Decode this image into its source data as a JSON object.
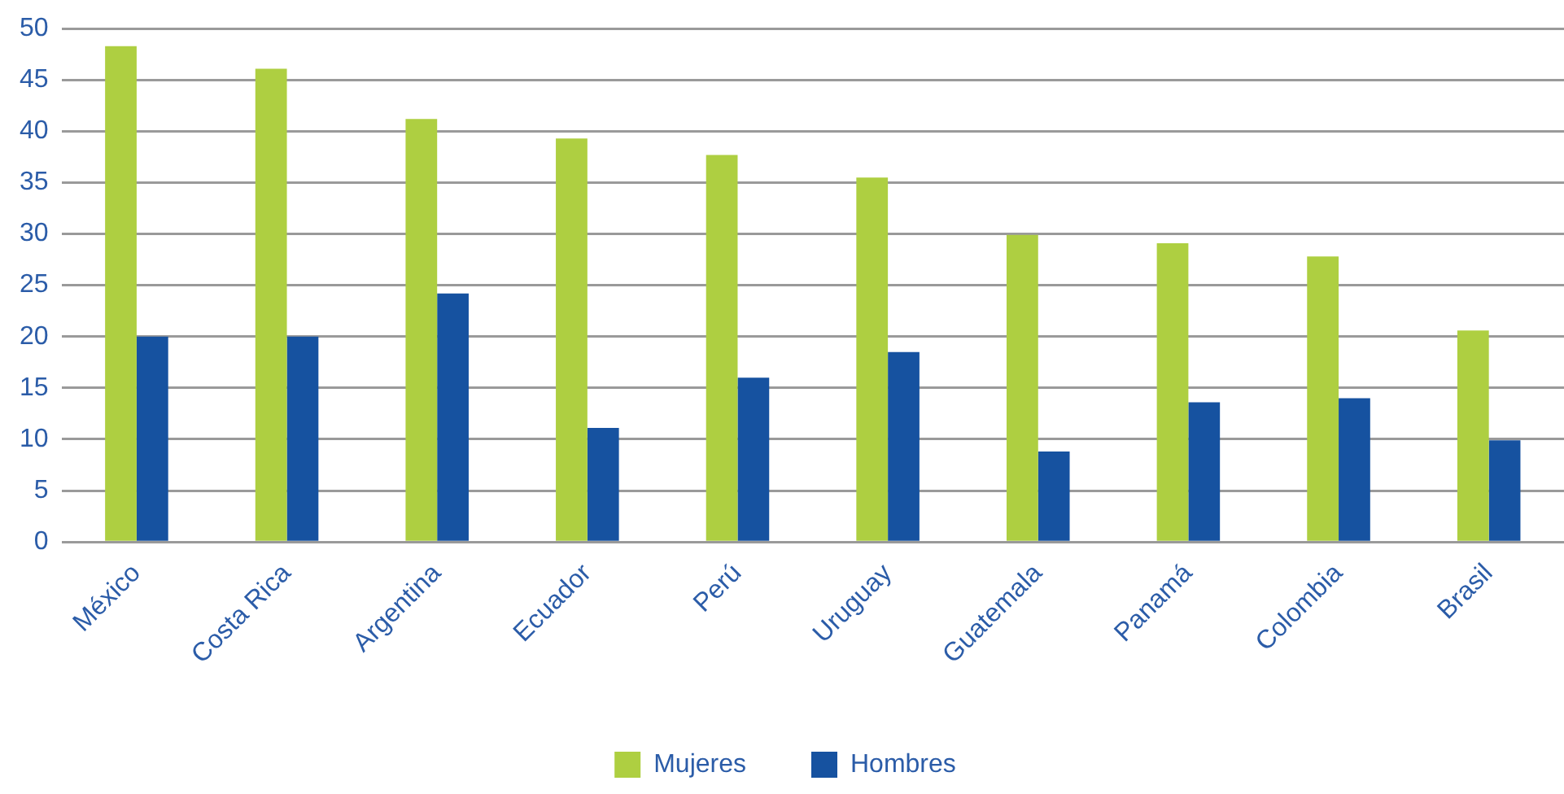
{
  "chart_data": {
    "type": "bar",
    "categories": [
      "México",
      "Costa Rica",
      "Argentina",
      "Ecuador",
      "Perú",
      "Uruguay",
      "Guatemala",
      "Panamá",
      "Colombia",
      "Brasil"
    ],
    "series": [
      {
        "name": "Mujeres",
        "color": "#aecf41",
        "values": [
          48.3,
          46.1,
          41.2,
          39.3,
          37.7,
          35.5,
          29.9,
          29.1,
          27.8,
          20.6
        ]
      },
      {
        "name": "Hombres",
        "color": "#1652a0",
        "values": [
          20,
          20,
          24.2,
          11.1,
          16,
          18.5,
          8.8,
          13.6,
          14,
          9.9
        ]
      }
    ],
    "ylim": [
      0,
      50
    ],
    "yticks": [
      0,
      5,
      10,
      15,
      20,
      25,
      30,
      35,
      40,
      45,
      50
    ],
    "grid": "y",
    "legend": "bottom"
  }
}
